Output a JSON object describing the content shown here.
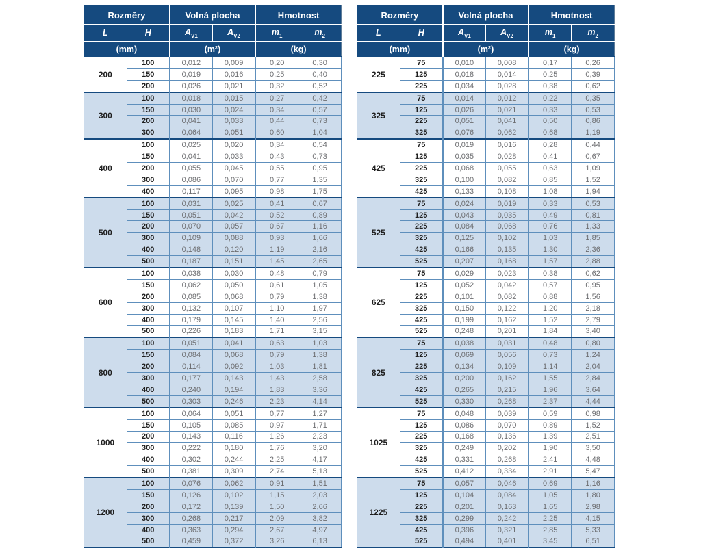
{
  "table_header": {
    "dimensions": "Rozměry",
    "free_area": "Volná plocha",
    "weight": "Hmotnost",
    "col_l": "L",
    "col_h": "H",
    "a_base": "A",
    "a_v1_sub": "V1",
    "a_v2_sub": "V2",
    "m_base": "m",
    "m_1_sub": "1",
    "m_2_sub": "2",
    "unit_mm": "(mm)",
    "unit_m2": "(m²)",
    "unit_kg": "(kg)"
  },
  "colors": {
    "header_bg": "#154a7f",
    "group_alt_bg": "#cddcec",
    "row_line": "#5e8fbc",
    "group_line": "#154a7f",
    "value_text": "#6d6e71",
    "dimension_text": "#1f1f1f"
  },
  "tables": [
    {
      "name": "left",
      "groups": [
        {
          "L": "200",
          "rows": [
            [
              "100",
              "0,012",
              "0,009",
              "0,20",
              "0,30"
            ],
            [
              "150",
              "0,019",
              "0,016",
              "0,25",
              "0,40"
            ],
            [
              "200",
              "0,026",
              "0,021",
              "0,32",
              "0,52"
            ]
          ]
        },
        {
          "L": "300",
          "rows": [
            [
              "100",
              "0,018",
              "0,015",
              "0,27",
              "0,42"
            ],
            [
              "150",
              "0,030",
              "0,024",
              "0,34",
              "0,57"
            ],
            [
              "200",
              "0,041",
              "0,033",
              "0,44",
              "0,73"
            ],
            [
              "300",
              "0,064",
              "0,051",
              "0,60",
              "1,04"
            ]
          ]
        },
        {
          "L": "400",
          "rows": [
            [
              "100",
              "0,025",
              "0,020",
              "0,34",
              "0,54"
            ],
            [
              "150",
              "0,041",
              "0,033",
              "0,43",
              "0,73"
            ],
            [
              "200",
              "0,055",
              "0,045",
              "0,55",
              "0,95"
            ],
            [
              "300",
              "0,086",
              "0,070",
              "0,77",
              "1,35"
            ],
            [
              "400",
              "0,117",
              "0,095",
              "0,98",
              "1,75"
            ]
          ]
        },
        {
          "L": "500",
          "rows": [
            [
              "100",
              "0,031",
              "0,025",
              "0,41",
              "0,67"
            ],
            [
              "150",
              "0,051",
              "0,042",
              "0,52",
              "0,89"
            ],
            [
              "200",
              "0,070",
              "0,057",
              "0,67",
              "1,16"
            ],
            [
              "300",
              "0,109",
              "0,088",
              "0,93",
              "1,66"
            ],
            [
              "400",
              "0,148",
              "0,120",
              "1,19",
              "2,16"
            ],
            [
              "500",
              "0,187",
              "0,151",
              "1,45",
              "2,65"
            ]
          ]
        },
        {
          "L": "600",
          "rows": [
            [
              "100",
              "0,038",
              "0,030",
              "0,48",
              "0,79"
            ],
            [
              "150",
              "0,062",
              "0,050",
              "0,61",
              "1,05"
            ],
            [
              "200",
              "0,085",
              "0,068",
              "0,79",
              "1,38"
            ],
            [
              "300",
              "0,132",
              "0,107",
              "1,10",
              "1,97"
            ],
            [
              "400",
              "0,179",
              "0,145",
              "1,40",
              "2,56"
            ],
            [
              "500",
              "0,226",
              "0,183",
              "1,71",
              "3,15"
            ]
          ]
        },
        {
          "L": "800",
          "rows": [
            [
              "100",
              "0,051",
              "0,041",
              "0,63",
              "1,03"
            ],
            [
              "150",
              "0,084",
              "0,068",
              "0,79",
              "1,38"
            ],
            [
              "200",
              "0,114",
              "0,092",
              "1,03",
              "1,81"
            ],
            [
              "300",
              "0,177",
              "0,143",
              "1,43",
              "2,58"
            ],
            [
              "400",
              "0,240",
              "0,194",
              "1,83",
              "3,36"
            ],
            [
              "500",
              "0,303",
              "0,246",
              "2,23",
              "4,14"
            ]
          ]
        },
        {
          "L": "1000",
          "rows": [
            [
              "100",
              "0,064",
              "0,051",
              "0,77",
              "1,27"
            ],
            [
              "150",
              "0,105",
              "0,085",
              "0,97",
              "1,71"
            ],
            [
              "200",
              "0,143",
              "0,116",
              "1,26",
              "2,23"
            ],
            [
              "300",
              "0,222",
              "0,180",
              "1,76",
              "3,20"
            ],
            [
              "400",
              "0,302",
              "0,244",
              "2,25",
              "4,17"
            ],
            [
              "500",
              "0,381",
              "0,309",
              "2,74",
              "5,13"
            ]
          ]
        },
        {
          "L": "1200",
          "rows": [
            [
              "100",
              "0,076",
              "0,062",
              "0,91",
              "1,51"
            ],
            [
              "150",
              "0,126",
              "0,102",
              "1,15",
              "2,03"
            ],
            [
              "200",
              "0,172",
              "0,139",
              "1,50",
              "2,66"
            ],
            [
              "300",
              "0,268",
              "0,217",
              "2,09",
              "3,82"
            ],
            [
              "400",
              "0,363",
              "0,294",
              "2,67",
              "4,97"
            ],
            [
              "500",
              "0,459",
              "0,372",
              "3,26",
              "6,13"
            ]
          ]
        }
      ]
    },
    {
      "name": "right",
      "groups": [
        {
          "L": "225",
          "rows": [
            [
              "75",
              "0,010",
              "0,008",
              "0,17",
              "0,26"
            ],
            [
              "125",
              "0,018",
              "0,014",
              "0,25",
              "0,39"
            ],
            [
              "225",
              "0,034",
              "0,028",
              "0,38",
              "0,62"
            ]
          ]
        },
        {
          "L": "325",
          "rows": [
            [
              "75",
              "0,014",
              "0,012",
              "0,22",
              "0,35"
            ],
            [
              "125",
              "0,026",
              "0,021",
              "0,33",
              "0,53"
            ],
            [
              "225",
              "0,051",
              "0,041",
              "0,50",
              "0,86"
            ],
            [
              "325",
              "0,076",
              "0,062",
              "0,68",
              "1,19"
            ]
          ]
        },
        {
          "L": "425",
          "rows": [
            [
              "75",
              "0,019",
              "0,016",
              "0,28",
              "0,44"
            ],
            [
              "125",
              "0,035",
              "0,028",
              "0,41",
              "0,67"
            ],
            [
              "225",
              "0,068",
              "0,055",
              "0,63",
              "1,09"
            ],
            [
              "325",
              "0,100",
              "0,082",
              "0,85",
              "1,52"
            ],
            [
              "425",
              "0,133",
              "0,108",
              "1,08",
              "1,94"
            ]
          ]
        },
        {
          "L": "525",
          "rows": [
            [
              "75",
              "0,024",
              "0,019",
              "0,33",
              "0,53"
            ],
            [
              "125",
              "0,043",
              "0,035",
              "0,49",
              "0,81"
            ],
            [
              "225",
              "0,084",
              "0,068",
              "0,76",
              "1,33"
            ],
            [
              "325",
              "0,125",
              "0,102",
              "1,03",
              "1,85"
            ],
            [
              "425",
              "0,166",
              "0,135",
              "1,30",
              "2,36"
            ],
            [
              "525",
              "0,207",
              "0,168",
              "1,57",
              "2,88"
            ]
          ]
        },
        {
          "L": "625",
          "rows": [
            [
              "75",
              "0,029",
              "0,023",
              "0,38",
              "0,62"
            ],
            [
              "125",
              "0,052",
              "0,042",
              "0,57",
              "0,95"
            ],
            [
              "225",
              "0,101",
              "0,082",
              "0,88",
              "1,56"
            ],
            [
              "325",
              "0,150",
              "0,122",
              "1,20",
              "2,18"
            ],
            [
              "425",
              "0,199",
              "0,162",
              "1,52",
              "2,79"
            ],
            [
              "525",
              "0,248",
              "0,201",
              "1,84",
              "3,40"
            ]
          ]
        },
        {
          "L": "825",
          "rows": [
            [
              "75",
              "0,038",
              "0,031",
              "0,48",
              "0,80"
            ],
            [
              "125",
              "0,069",
              "0,056",
              "0,73",
              "1,24"
            ],
            [
              "225",
              "0,134",
              "0,109",
              "1,14",
              "2,04"
            ],
            [
              "325",
              "0,200",
              "0,162",
              "1,55",
              "2,84"
            ],
            [
              "425",
              "0,265",
              "0,215",
              "1,96",
              "3,64"
            ],
            [
              "525",
              "0,330",
              "0,268",
              "2,37",
              "4,44"
            ]
          ]
        },
        {
          "L": "1025",
          "rows": [
            [
              "75",
              "0,048",
              "0,039",
              "0,59",
              "0,98"
            ],
            [
              "125",
              "0,086",
              "0,070",
              "0,89",
              "1,52"
            ],
            [
              "225",
              "0,168",
              "0,136",
              "1,39",
              "2,51"
            ],
            [
              "325",
              "0,249",
              "0,202",
              "1,90",
              "3,50"
            ],
            [
              "425",
              "0,331",
              "0,268",
              "2,41",
              "4,48"
            ],
            [
              "525",
              "0,412",
              "0,334",
              "2,91",
              "5,47"
            ]
          ]
        },
        {
          "L": "1225",
          "rows": [
            [
              "75",
              "0,057",
              "0,046",
              "0,69",
              "1,16"
            ],
            [
              "125",
              "0,104",
              "0,084",
              "1,05",
              "1,80"
            ],
            [
              "225",
              "0,201",
              "0,163",
              "1,65",
              "2,98"
            ],
            [
              "325",
              "0,299",
              "0,242",
              "2,25",
              "4,15"
            ],
            [
              "425",
              "0,396",
              "0,321",
              "2,85",
              "5,33"
            ],
            [
              "525",
              "0,494",
              "0,401",
              "3,45",
              "6,51"
            ]
          ]
        }
      ]
    }
  ]
}
